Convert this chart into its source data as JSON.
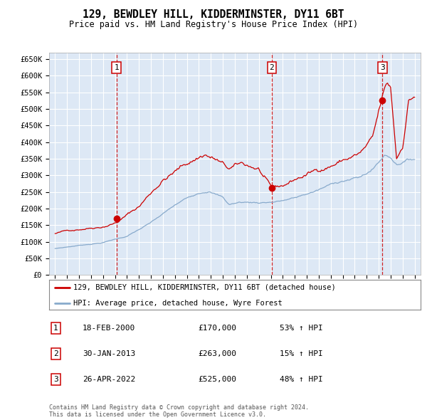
{
  "title": "129, BEWDLEY HILL, KIDDERMINSTER, DY11 6BT",
  "subtitle": "Price paid vs. HM Land Registry's House Price Index (HPI)",
  "legend_entry1": "129, BEWDLEY HILL, KIDDERMINSTER, DY11 6BT (detached house)",
  "legend_entry2": "HPI: Average price, detached house, Wyre Forest",
  "sale1_date": "18-FEB-2000",
  "sale1_price": "£170,000",
  "sale1_hpi": "53% ↑ HPI",
  "sale1_x": 2000.12,
  "sale1_y": 170000,
  "sale2_date": "30-JAN-2013",
  "sale2_price": "£263,000",
  "sale2_hpi": "15% ↑ HPI",
  "sale2_x": 2013.08,
  "sale2_y": 263000,
  "sale3_date": "26-APR-2022",
  "sale3_price": "£525,000",
  "sale3_hpi": "48% ↑ HPI",
  "sale3_x": 2022.32,
  "sale3_y": 525000,
  "ylim": [
    0,
    670000
  ],
  "yticks": [
    0,
    50000,
    100000,
    150000,
    200000,
    250000,
    300000,
    350000,
    400000,
    450000,
    500000,
    550000,
    600000,
    650000
  ],
  "xlim": [
    1994.5,
    2025.5
  ],
  "red_color": "#cc0000",
  "blue_color": "#88aacc",
  "bg_color": "#dde8f5",
  "grid_color": "#ffffff",
  "footer_text": "Contains HM Land Registry data © Crown copyright and database right 2024.\nThis data is licensed under the Open Government Licence v3.0."
}
